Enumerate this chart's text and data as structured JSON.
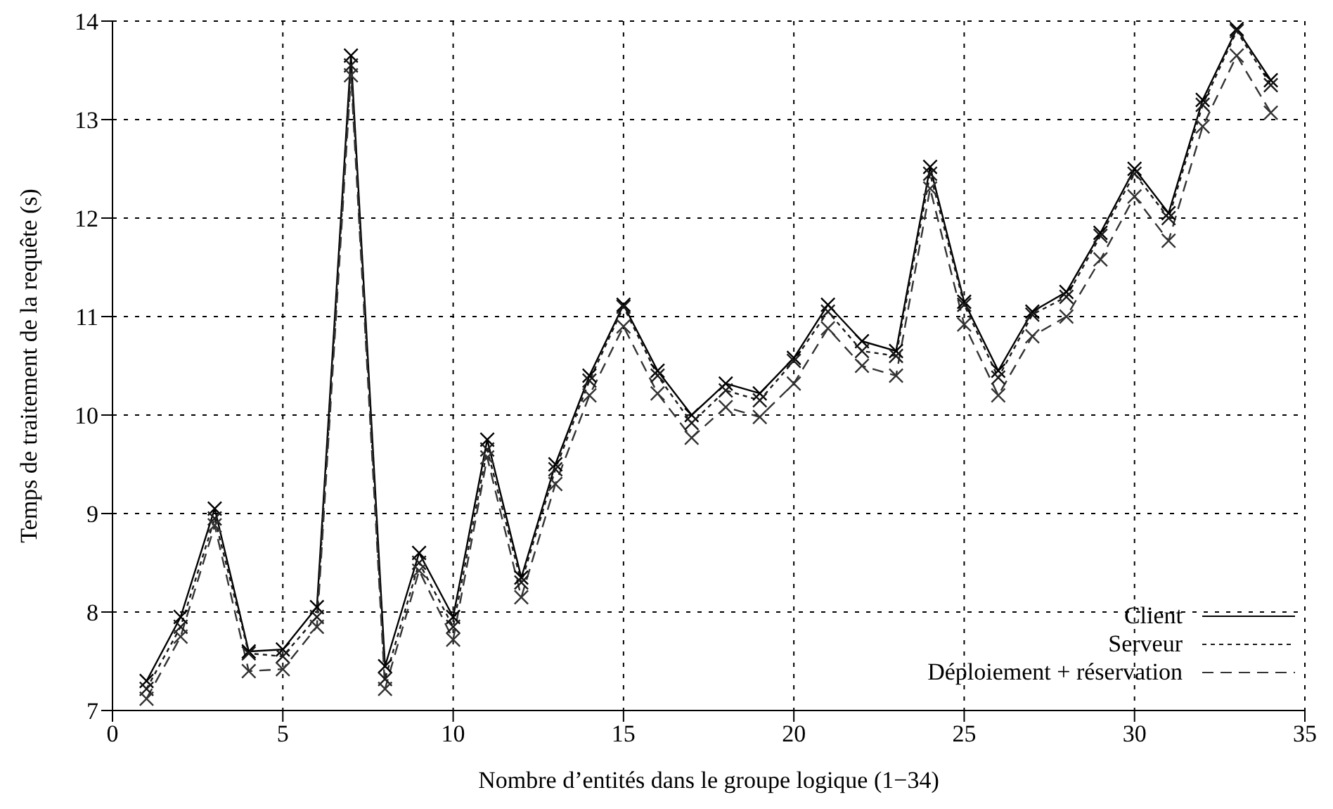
{
  "chart_data": {
    "type": "line",
    "xlabel": "Nombre d’entités dans le groupe logique (1−34)",
    "ylabel": "Temps de traitement de la requête (s)",
    "x": [
      1,
      2,
      3,
      4,
      5,
      6,
      7,
      8,
      9,
      10,
      11,
      12,
      13,
      14,
      15,
      16,
      17,
      18,
      19,
      20,
      21,
      22,
      23,
      24,
      25,
      26,
      27,
      28,
      29,
      30,
      31,
      32,
      33,
      34
    ],
    "series": [
      {
        "name": "Client",
        "color": "#000000",
        "marker": "cross",
        "line_style": "solid",
        "values": [
          7.3,
          7.95,
          9.05,
          7.6,
          7.62,
          8.05,
          13.65,
          7.45,
          8.6,
          7.95,
          9.75,
          8.35,
          9.5,
          10.4,
          11.12,
          10.45,
          10.0,
          10.32,
          10.22,
          10.58,
          11.12,
          10.75,
          10.65,
          12.52,
          11.15,
          10.45,
          11.05,
          11.25,
          11.85,
          12.5,
          12.05,
          13.2,
          13.92,
          13.4
        ]
      },
      {
        "name": "Serveur",
        "color": "#1a1a1a",
        "marker": "cross",
        "line_style": "dotted",
        "values": [
          7.22,
          7.85,
          8.95,
          7.58,
          7.55,
          7.95,
          13.55,
          7.32,
          8.5,
          7.85,
          9.65,
          8.3,
          9.45,
          10.35,
          11.1,
          10.4,
          9.92,
          10.25,
          10.15,
          10.55,
          11.05,
          10.65,
          10.6,
          12.45,
          11.12,
          10.38,
          11.02,
          11.2,
          11.82,
          12.45,
          12.0,
          13.15,
          13.9,
          13.35
        ]
      },
      {
        "name": "Déploiement + réservation",
        "color": "#333333",
        "marker": "cross",
        "line_style": "dashed",
        "values": [
          7.12,
          7.75,
          8.88,
          7.4,
          7.42,
          7.85,
          13.45,
          7.22,
          8.42,
          7.72,
          9.57,
          8.15,
          9.3,
          10.2,
          10.9,
          10.22,
          9.77,
          10.08,
          9.98,
          10.32,
          10.88,
          10.5,
          10.4,
          12.3,
          10.92,
          10.2,
          10.8,
          11.0,
          11.58,
          12.22,
          11.77,
          12.93,
          13.65,
          13.07
        ]
      }
    ],
    "xlim": [
      0,
      35
    ],
    "xticks": [
      0,
      5,
      10,
      15,
      20,
      25,
      30,
      35
    ],
    "ylim": [
      7,
      14
    ],
    "yticks": [
      7,
      8,
      9,
      10,
      11,
      12,
      13,
      14
    ],
    "grid": true,
    "legend": "bottom right"
  }
}
